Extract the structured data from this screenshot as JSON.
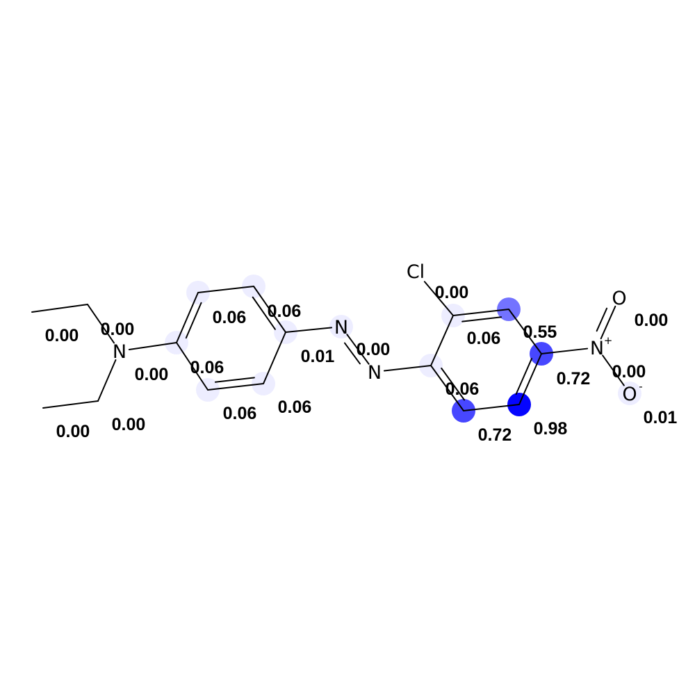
{
  "molecule": {
    "highlight_color": "#0000ff",
    "atoms": [
      {
        "id": "c_ethyl_top_end",
        "label": "",
        "score": "0.00",
        "weight": 0.0
      },
      {
        "id": "c_ethyl_top_ch2",
        "label": "",
        "score": "0.00",
        "weight": 0.0
      },
      {
        "id": "n_amine",
        "label": "N",
        "score": "0.00",
        "weight": 0.0
      },
      {
        "id": "c_ethyl_bot_ch2",
        "label": "",
        "score": "0.00",
        "weight": 0.0
      },
      {
        "id": "c_ethyl_bot_end",
        "label": "",
        "score": "0.00",
        "weight": 0.0
      },
      {
        "id": "c_ring1_ipso_n",
        "label": "",
        "score": "0.06",
        "weight": 0.06
      },
      {
        "id": "c_ring1_top_left",
        "label": "",
        "score": "0.06",
        "weight": 0.06
      },
      {
        "id": "c_ring1_top_right",
        "label": "",
        "score": "0.06",
        "weight": 0.06
      },
      {
        "id": "c_ring1_ipso_azo",
        "label": "",
        "score": "0.06",
        "weight": 0.06
      },
      {
        "id": "c_ring1_bot_right",
        "label": "",
        "score": "0.06",
        "weight": 0.06
      },
      {
        "id": "c_ring1_bot_left",
        "label": "",
        "score": "0.06",
        "weight": 0.06
      },
      {
        "id": "n_azo_1",
        "label": "N",
        "score": "0.01",
        "weight": 0.01
      },
      {
        "id": "n_azo_2",
        "label": "N",
        "score": "0.00",
        "weight": 0.0
      },
      {
        "id": "c_ring2_ipso_azo",
        "label": "",
        "score": "0.06",
        "weight": 0.06
      },
      {
        "id": "c_ring2_c_cl",
        "label": "",
        "score": "0.06",
        "weight": 0.06
      },
      {
        "id": "cl",
        "label": "Cl",
        "score": "0.00",
        "weight": 0.0
      },
      {
        "id": "c_ring2_top_right",
        "label": "",
        "score": "0.55",
        "weight": 0.55
      },
      {
        "id": "c_ring2_c_no2",
        "label": "",
        "score": "0.72",
        "weight": 0.72
      },
      {
        "id": "n_nitro",
        "label": "N",
        "charge": "+",
        "score": "0.00",
        "weight": 0.0
      },
      {
        "id": "o_nitro_double",
        "label": "O",
        "score": "0.00",
        "weight": 0.0
      },
      {
        "id": "o_nitro_minus",
        "label": "O",
        "charge": "-",
        "score": "0.01",
        "weight": 0.01
      },
      {
        "id": "c_ring2_bot_right",
        "label": "",
        "score": "0.98",
        "weight": 0.98
      },
      {
        "id": "c_ring2_bot_left",
        "label": "",
        "score": "0.72",
        "weight": 0.72
      }
    ]
  }
}
